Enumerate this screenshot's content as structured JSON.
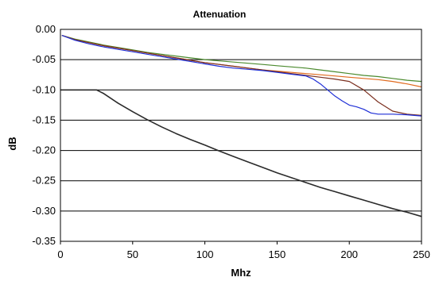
{
  "chart_data": {
    "type": "line",
    "title": "Attenuation",
    "xlabel": "Mhz",
    "ylabel": "dB",
    "xlim": [
      0,
      250
    ],
    "ylim": [
      -0.35,
      0.0
    ],
    "xticks": [
      "0",
      "50",
      "100",
      "150",
      "200",
      "250"
    ],
    "yticks": [
      "0.00",
      "-0.05",
      "-0.10",
      "-0.15",
      "-0.20",
      "-0.25",
      "-0.30",
      "-0.35"
    ],
    "grid": "horizontal",
    "legend": "none",
    "series": [
      {
        "color": "#4b8a2e",
        "x": [
          1,
          10,
          20,
          30,
          40,
          50,
          60,
          70,
          80,
          90,
          100,
          110,
          120,
          130,
          140,
          150,
          160,
          170,
          180,
          190,
          200,
          210,
          220,
          230,
          240,
          250
        ],
        "y": [
          -0.01,
          -0.016,
          -0.021,
          -0.026,
          -0.03,
          -0.034,
          -0.038,
          -0.041,
          -0.044,
          -0.047,
          -0.05,
          -0.052,
          -0.054,
          -0.056,
          -0.058,
          -0.06,
          -0.062,
          -0.064,
          -0.067,
          -0.07,
          -0.073,
          -0.076,
          -0.078,
          -0.081,
          -0.084,
          -0.086
        ]
      },
      {
        "color": "#e06a1e",
        "x": [
          1,
          10,
          20,
          30,
          40,
          50,
          60,
          70,
          80,
          90,
          100,
          110,
          120,
          130,
          140,
          150,
          160,
          170,
          180,
          190,
          200,
          210,
          220,
          230,
          240,
          250
        ],
        "y": [
          -0.01,
          -0.017,
          -0.022,
          -0.027,
          -0.031,
          -0.035,
          -0.039,
          -0.043,
          -0.047,
          -0.051,
          -0.055,
          -0.058,
          -0.061,
          -0.064,
          -0.067,
          -0.069,
          -0.071,
          -0.073,
          -0.075,
          -0.077,
          -0.079,
          -0.081,
          -0.083,
          -0.086,
          -0.09,
          -0.095
        ]
      },
      {
        "color": "#7a2e1e",
        "x": [
          1,
          10,
          20,
          30,
          40,
          50,
          60,
          70,
          80,
          90,
          100,
          110,
          120,
          130,
          140,
          150,
          160,
          170,
          180,
          190,
          200,
          210,
          220,
          230,
          240,
          250
        ],
        "y": [
          -0.01,
          -0.017,
          -0.022,
          -0.027,
          -0.031,
          -0.035,
          -0.039,
          -0.043,
          -0.047,
          -0.051,
          -0.055,
          -0.058,
          -0.061,
          -0.064,
          -0.067,
          -0.07,
          -0.073,
          -0.076,
          -0.079,
          -0.082,
          -0.086,
          -0.1,
          -0.12,
          -0.135,
          -0.14,
          -0.142
        ]
      },
      {
        "color": "#1f2fd6",
        "x": [
          1,
          10,
          20,
          30,
          40,
          50,
          60,
          70,
          80,
          90,
          100,
          110,
          120,
          130,
          140,
          150,
          160,
          170,
          175,
          180,
          185,
          190,
          195,
          200,
          205,
          210,
          215,
          220,
          230,
          240,
          250
        ],
        "y": [
          -0.01,
          -0.018,
          -0.024,
          -0.029,
          -0.033,
          -0.037,
          -0.041,
          -0.045,
          -0.049,
          -0.053,
          -0.057,
          -0.061,
          -0.064,
          -0.066,
          -0.068,
          -0.071,
          -0.074,
          -0.077,
          -0.082,
          -0.09,
          -0.1,
          -0.11,
          -0.118,
          -0.125,
          -0.128,
          -0.132,
          -0.138,
          -0.14,
          -0.14,
          -0.141,
          -0.143
        ]
      },
      {
        "color": "#2a2a2a",
        "x": [
          0,
          25,
          30,
          40,
          50,
          60,
          70,
          80,
          90,
          100,
          110,
          120,
          130,
          140,
          150,
          160,
          170,
          180,
          190,
          200,
          210,
          220,
          230,
          240,
          250
        ],
        "y": [
          -0.1,
          -0.1,
          -0.106,
          -0.122,
          -0.136,
          -0.149,
          -0.161,
          -0.172,
          -0.182,
          -0.191,
          -0.201,
          -0.21,
          -0.219,
          -0.228,
          -0.237,
          -0.245,
          -0.253,
          -0.261,
          -0.268,
          -0.275,
          -0.282,
          -0.289,
          -0.296,
          -0.302,
          -0.309
        ]
      }
    ]
  }
}
